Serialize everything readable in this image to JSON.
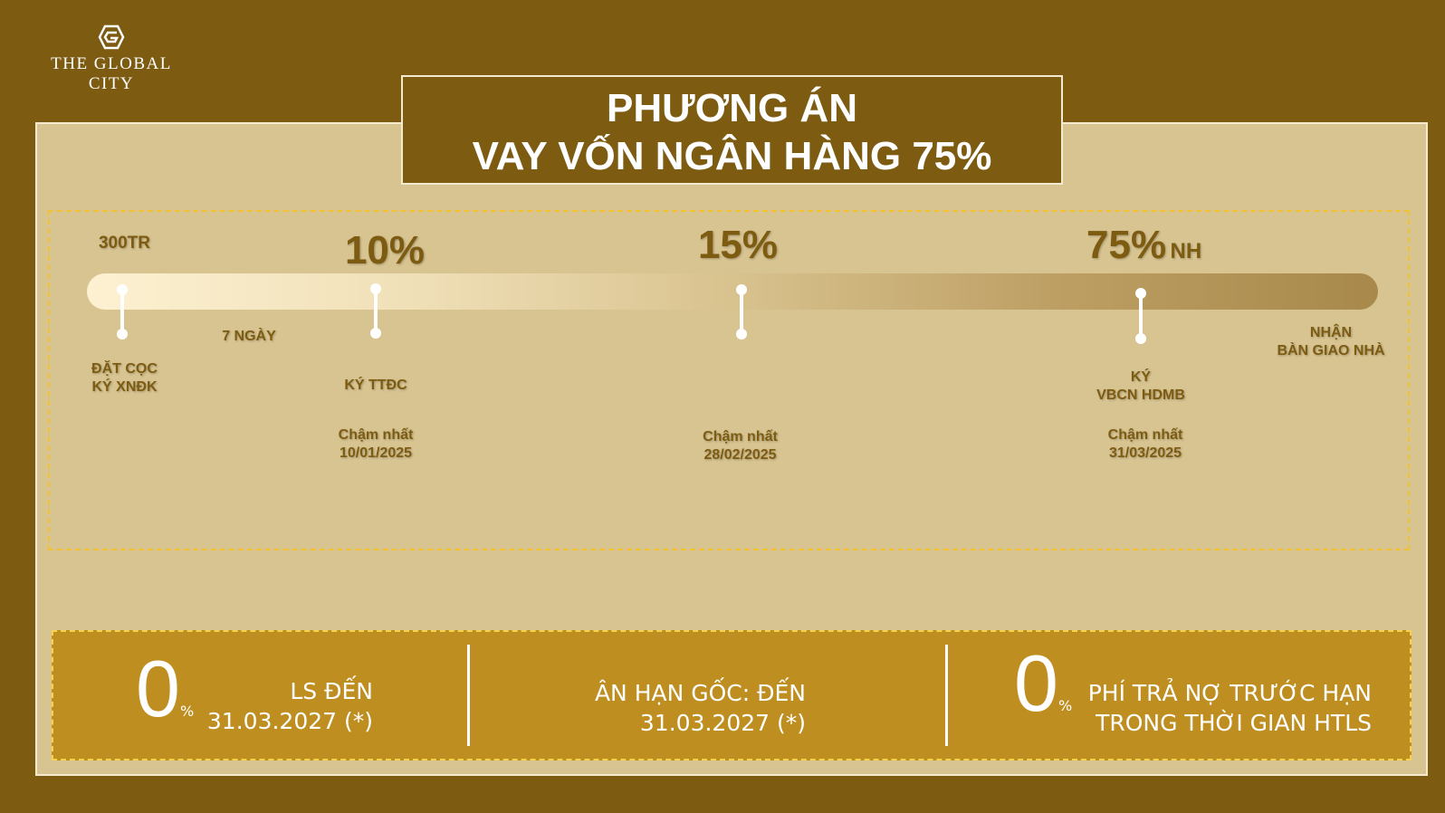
{
  "brand": {
    "name": "THE GLOBAL CITY",
    "icon": "hexagon-g-logo"
  },
  "title": {
    "line1": "PHƯƠNG ÁN",
    "line2": "VAY VỐN NGÂN HÀNG 75%"
  },
  "timeline": {
    "milestones": [
      {
        "amount": "300TR",
        "label1": "ĐẶT CỌC",
        "label2": "KÝ XNĐK"
      },
      {
        "amount": "10%",
        "label1": "KÝ TTĐC",
        "deadline1": "Chậm nhất",
        "deadline2": "10/01/2025"
      },
      {
        "amount": "15%",
        "deadline1": "Chậm nhất",
        "deadline2": "28/02/2025"
      },
      {
        "amount": "75%",
        "amount_suffix": "NH",
        "label1": "KÝ",
        "label2": "VBCN HDMB",
        "deadline1": "Chậm nhất",
        "deadline2": "31/03/2025"
      }
    ],
    "interval": "7 NGÀY",
    "end": {
      "label1": "NHẬN",
      "label2": "BÀN GIAO NHÀ"
    }
  },
  "benefits": [
    {
      "value": "0",
      "unit": "%",
      "line1": "LS ĐẾN",
      "line2": "31.03.2027 (*)"
    },
    {
      "line1": "ÂN HẠN GỐC: ĐẾN",
      "line2": "31.03.2027 (*)"
    },
    {
      "value": "0",
      "unit": "%",
      "line1": "PHÍ TRẢ NỢ TRƯỚC HẠN",
      "line2": "TRONG THỜI GIAN HTLS"
    }
  ],
  "colors": {
    "background": "#7d5c12",
    "panel": "#d8c491",
    "bottom": "#bf8e20",
    "dash": "#f2c230"
  }
}
